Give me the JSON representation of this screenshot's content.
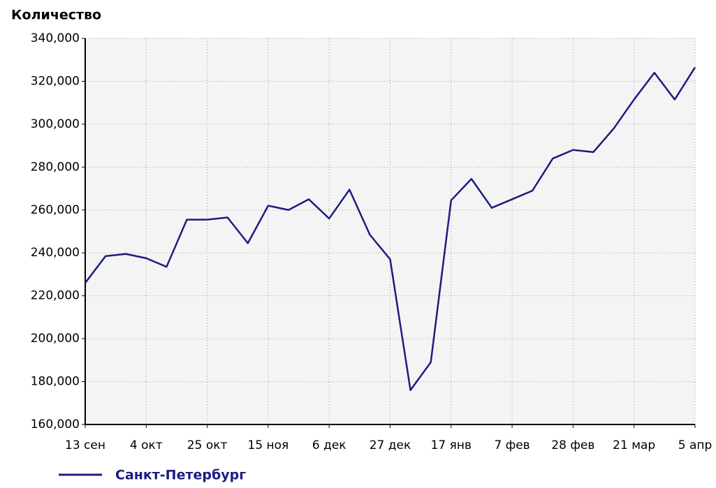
{
  "chart_data": {
    "type": "line",
    "y_label": "Количество",
    "categories": [
      "13 сен",
      null,
      null,
      "4 окт",
      null,
      null,
      "25 окт",
      null,
      null,
      "15 ноя",
      null,
      null,
      "6 дек",
      null,
      null,
      "27 дек",
      null,
      null,
      "17 янв",
      null,
      null,
      "7 фев",
      null,
      null,
      "28 фев",
      null,
      null,
      "21 мар",
      null,
      null,
      "5 апр"
    ],
    "series": [
      {
        "name": "Санкт-Петербург",
        "color": "#1c1c80",
        "values": [
          226000,
          238500,
          239500,
          237500,
          233500,
          255500,
          255500,
          256500,
          244500,
          262000,
          260000,
          265000,
          256000,
          269500,
          248500,
          237000,
          176000,
          189000,
          264500,
          274500,
          261000,
          265000,
          269000,
          284000,
          288000,
          287000,
          298000,
          311500,
          324000,
          311500,
          326500
        ]
      }
    ],
    "ylim": [
      160000,
      340000
    ],
    "yticks": [
      {
        "value": 160000,
        "label": "160,000"
      },
      {
        "value": 180000,
        "label": "180,000"
      },
      {
        "value": 200000,
        "label": "200,000"
      },
      {
        "value": 220000,
        "label": "220,000"
      },
      {
        "value": 240000,
        "label": "240,000"
      },
      {
        "value": 260000,
        "label": "260,000"
      },
      {
        "value": 280000,
        "label": "280,000"
      },
      {
        "value": 300000,
        "label": "300,000"
      },
      {
        "value": 320000,
        "label": "320,000"
      },
      {
        "value": 340000,
        "label": "340,000"
      }
    ],
    "grid": true
  }
}
